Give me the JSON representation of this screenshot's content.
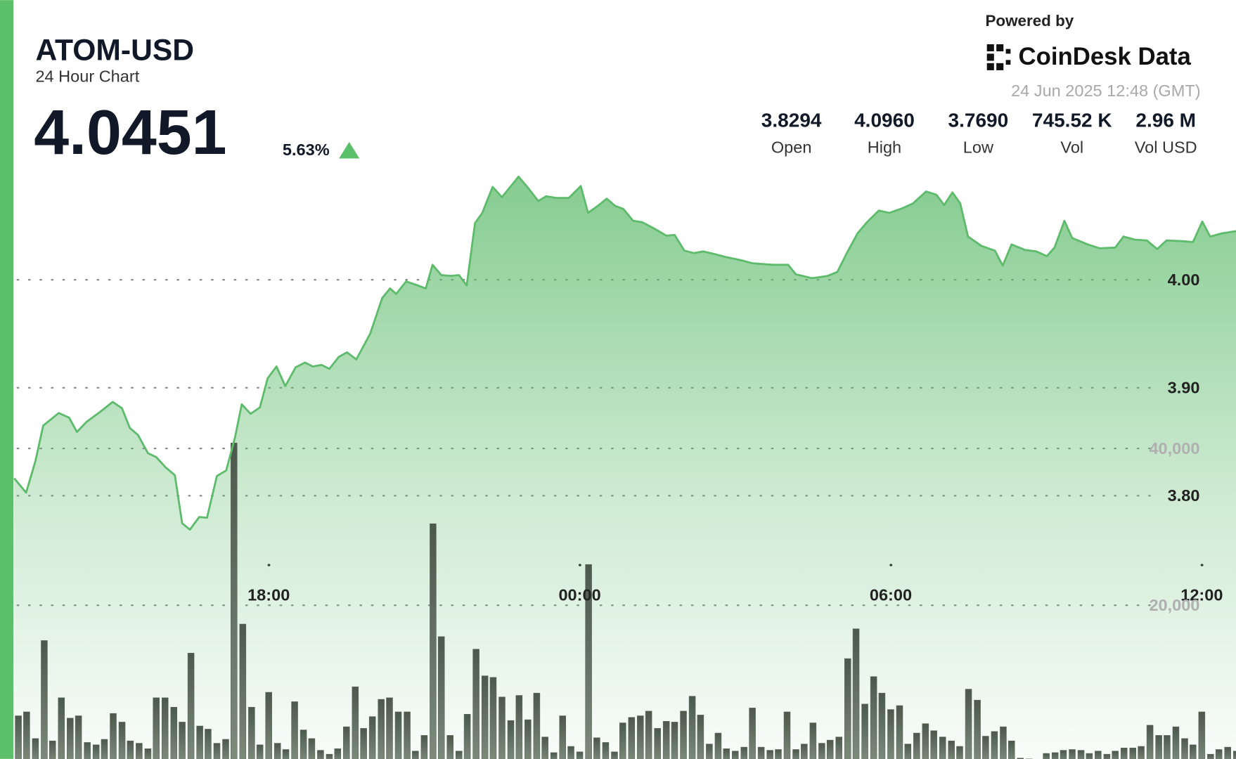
{
  "header": {
    "title": "ATOM-USD",
    "subtitle": "24 Hour Chart",
    "price": "4.0451",
    "change": "5.63%",
    "powered_by": "Powered by",
    "brand": "CoinDesk Data",
    "timestamp": "24 Jun 2025 12:48 (GMT)",
    "stats": [
      {
        "value": "3.8294",
        "label": "Open"
      },
      {
        "value": "4.0960",
        "label": "High"
      },
      {
        "value": "3.7690",
        "label": "Low"
      },
      {
        "value": "745.52 K",
        "label": "Vol"
      },
      {
        "value": "2.96 M",
        "label": "Vol USD"
      }
    ]
  },
  "chart_data": [
    {
      "type": "area",
      "color": "#5dbb6b",
      "xlim": [
        13.09,
        36.66
      ],
      "ylim": [
        3.55,
        4.15
      ],
      "xticks": [
        {
          "value": 18,
          "label": "18:00"
        },
        {
          "value": 24,
          "label": "00:00"
        },
        {
          "value": 30,
          "label": "06:00"
        },
        {
          "value": 36,
          "label": "12:00"
        }
      ],
      "yticks": [
        {
          "value": 3.8,
          "label": "3.80"
        },
        {
          "value": 3.9,
          "label": "3.90"
        },
        {
          "value": 4,
          "label": "4.00"
        }
      ],
      "grid": true,
      "x": [
        13.09,
        13.32,
        13.5,
        13.65,
        13.95,
        14.15,
        14.3,
        14.49,
        14.76,
        14.99,
        15.17,
        15.32,
        15.48,
        15.67,
        15.83,
        16.01,
        16.19,
        16.33,
        16.48,
        16.66,
        16.81,
        17.0,
        17.18,
        17.35,
        17.48,
        17.65,
        17.83,
        17.98,
        18.15,
        18.32,
        18.52,
        18.7,
        18.85,
        19.02,
        19.17,
        19.35,
        19.51,
        19.69,
        19.96,
        20.19,
        20.34,
        20.46,
        20.65,
        20.87,
        21.03,
        21.16,
        21.33,
        21.51,
        21.67,
        21.82,
        21.98,
        22.12,
        22.32,
        22.5,
        22.82,
        23.0,
        23.2,
        23.35,
        23.55,
        23.79,
        24.02,
        24.16,
        24.37,
        24.52,
        24.68,
        24.84,
        25.03,
        25.21,
        25.44,
        25.67,
        25.83,
        26.02,
        26.2,
        26.38,
        26.58,
        26.81,
        27.11,
        27.34,
        27.72,
        28.02,
        28.17,
        28.48,
        28.78,
        28.97,
        29.16,
        29.36,
        29.54,
        29.77,
        29.97,
        30.23,
        30.43,
        30.68,
        30.88,
        31.03,
        31.19,
        31.34,
        31.49,
        31.75,
        32.01,
        32.16,
        32.33,
        32.59,
        32.81,
        33.01,
        33.16,
        33.35,
        33.5,
        33.8,
        34.03,
        34.33,
        34.49,
        34.71,
        34.94,
        35.14,
        35.32,
        35.63,
        35.83,
        36.01,
        36.16,
        36.39,
        36.66
      ],
      "values": [
        3.8161,
        3.8029,
        3.8321,
        3.865,
        3.8766,
        3.8723,
        3.8591,
        3.8686,
        3.8781,
        3.8869,
        3.881,
        3.8628,
        3.8562,
        3.8394,
        3.8358,
        3.8263,
        3.819,
        3.7745,
        3.7686,
        3.7803,
        3.7796,
        3.8182,
        3.8234,
        3.854,
        3.8847,
        3.8759,
        3.8818,
        3.9088,
        3.9197,
        3.9015,
        3.919,
        3.9234,
        3.9197,
        3.9212,
        3.9175,
        3.9285,
        3.9328,
        3.9263,
        3.9504,
        3.9832,
        3.992,
        3.9869,
        3.9985,
        3.9949,
        3.992,
        4.0139,
        4.0044,
        4.0036,
        4.0044,
        3.9949,
        4.0526,
        4.062,
        4.0861,
        4.0766,
        4.0956,
        4.0854,
        4.073,
        4.0774,
        4.0759,
        4.0759,
        4.0869,
        4.062,
        4.0693,
        4.0752,
        4.0686,
        4.0657,
        4.0547,
        4.0533,
        4.0474,
        4.0409,
        4.0416,
        4.027,
        4.0248,
        4.0263,
        4.0241,
        4.0212,
        4.0182,
        4.0153,
        4.0139,
        4.0139,
        4.0051,
        4.0015,
        4.0036,
        4.0073,
        4.0255,
        4.0431,
        4.0533,
        4.0642,
        4.062,
        4.0664,
        4.0708,
        4.0818,
        4.0788,
        4.0693,
        4.081,
        4.0708,
        4.0401,
        4.0314,
        4.027,
        4.0131,
        4.0328,
        4.0277,
        4.0263,
        4.0219,
        4.0299,
        4.0547,
        4.0387,
        4.0328,
        4.0292,
        4.0299,
        4.0401,
        4.0372,
        4.0365,
        4.0285,
        4.0365,
        4.0358,
        4.035,
        4.054,
        4.0401,
        4.0431,
        4.0451
      ]
    },
    {
      "type": "bar",
      "color": "#5c675b",
      "xlim": [
        13.09,
        36.66
      ],
      "ylim": [
        0,
        60000
      ],
      "yticks": [
        {
          "value": 20000,
          "label": "20,000"
        },
        {
          "value": 40000,
          "label": "40,000"
        }
      ],
      "grid": true,
      "x": [
        13.17,
        13.33,
        13.5,
        13.67,
        13.83,
        14.0,
        14.17,
        14.33,
        14.5,
        14.67,
        14.83,
        15.0,
        15.17,
        15.33,
        15.5,
        15.67,
        15.83,
        16.0,
        16.17,
        16.33,
        16.5,
        16.67,
        16.83,
        17.0,
        17.17,
        17.33,
        17.5,
        17.67,
        17.83,
        18.0,
        18.17,
        18.33,
        18.5,
        18.67,
        18.83,
        19.0,
        19.17,
        19.33,
        19.5,
        19.67,
        19.83,
        20.0,
        20.17,
        20.33,
        20.5,
        20.67,
        20.83,
        21.0,
        21.17,
        21.33,
        21.5,
        21.67,
        21.83,
        22.0,
        22.17,
        22.33,
        22.5,
        22.67,
        22.83,
        23.0,
        23.17,
        23.33,
        23.5,
        23.67,
        23.83,
        24.0,
        24.17,
        24.33,
        24.5,
        24.67,
        24.83,
        25.0,
        25.17,
        25.33,
        25.5,
        25.67,
        25.83,
        26.0,
        26.17,
        26.33,
        26.5,
        26.67,
        26.83,
        27.0,
        27.17,
        27.33,
        27.5,
        27.67,
        27.83,
        28.0,
        28.17,
        28.33,
        28.5,
        28.67,
        28.83,
        29.0,
        29.17,
        29.33,
        29.5,
        29.67,
        29.83,
        30.0,
        30.17,
        30.33,
        30.5,
        30.67,
        30.83,
        31.0,
        31.17,
        31.33,
        31.5,
        31.67,
        31.83,
        32.0,
        32.17,
        32.33,
        32.5,
        32.67,
        32.83,
        33.0,
        33.17,
        33.33,
        33.5,
        33.67,
        33.83,
        34.0,
        34.17,
        34.33,
        34.5,
        34.67,
        34.83,
        35.0,
        35.17,
        35.33,
        35.5,
        35.67,
        35.83,
        36.0,
        36.17,
        36.33,
        36.5,
        36.67
      ],
      "values": [
        5900,
        6400,
        3000,
        15500,
        2700,
        8200,
        5600,
        5900,
        2500,
        2200,
        2900,
        6200,
        5100,
        2700,
        2400,
        1700,
        8200,
        8200,
        7000,
        5100,
        13900,
        4600,
        4200,
        2400,
        2900,
        40700,
        17600,
        7000,
        2200,
        8900,
        2400,
        1600,
        7700,
        4100,
        3000,
        1500,
        1000,
        1700,
        4500,
        9600,
        4300,
        5800,
        8000,
        8200,
        6400,
        6400,
        1400,
        3400,
        30400,
        16000,
        3400,
        1400,
        6100,
        14400,
        11000,
        10800,
        8300,
        5300,
        8500,
        5400,
        8800,
        3200,
        1200,
        5900,
        2000,
        1300,
        25200,
        3100,
        2500,
        1300,
        5000,
        5700,
        5900,
        6500,
        4300,
        5200,
        5100,
        6500,
        8400,
        6000,
        2300,
        3700,
        1700,
        1400,
        1900,
        6900,
        1900,
        1500,
        1600,
        6400,
        1600,
        2300,
        5000,
        2400,
        2800,
        3200,
        13200,
        17000,
        7400,
        10900,
        8800,
        6700,
        7200,
        2300,
        3700,
        4900,
        4000,
        3200,
        2700,
        2000,
        9300,
        7900,
        3300,
        3900,
        4500,
        2700,
        500,
        400,
        300,
        1100,
        1200,
        1500,
        1600,
        1500,
        1100,
        1400,
        1000,
        1400,
        1800,
        1800,
        2000,
        4700,
        3400,
        3400,
        4500,
        3000,
        2200,
        6400,
        1000,
        1600,
        1900,
        1400
      ]
    }
  ]
}
